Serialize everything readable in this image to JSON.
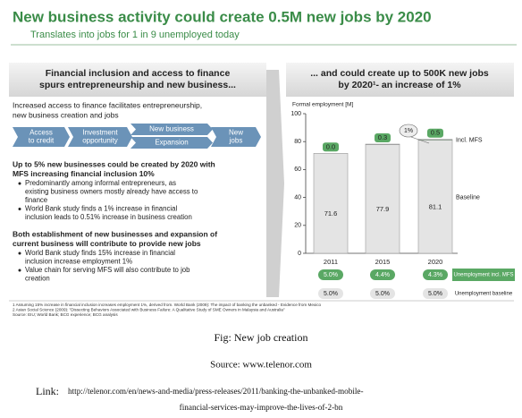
{
  "header": {
    "title": "New business activity could create 0.5M new jobs by 2020",
    "subtitle": "Translates into jobs for 1 in 9 unemployed today"
  },
  "left_panel": {
    "heading": [
      "Financial inclusion and access to finance",
      "spurs entrepreneurship and new business..."
    ],
    "intro": [
      "Increased access to finance facilitates entrepreneurship,",
      "new business creation and jobs"
    ],
    "flow": [
      [
        "Access",
        "to credit"
      ],
      [
        "Investment",
        "opportunity"
      ],
      [
        "New business"
      ],
      [
        "Expansion"
      ],
      [
        "New",
        "jobs"
      ]
    ],
    "block1": {
      "lead": [
        "Up to 5% new businesses could be created by 2020 with",
        "MFS increasing financial inclusion 10%"
      ],
      "bullets": [
        [
          "Predominantly among informal entrepreneurs, as",
          "existing business owners mostly already have access to",
          "finance"
        ],
        [
          "World Bank study finds a 1% increase in financial",
          "inclusion leads to 0.51% increase in business creation"
        ]
      ]
    },
    "block2": {
      "lead": [
        "Both establishment of new businesses and expansion of",
        "current business will contribute to provide new jobs"
      ],
      "bullets": [
        [
          "World Bank study finds 15% increase in financial",
          "inclusion increase employment 1%"
        ],
        [
          "Value chain for serving MFS will also contribute to job",
          "creation"
        ]
      ]
    }
  },
  "right_heading": [
    "... and could create up to 500K new jobs",
    "by 2020¹- an increase of 1%"
  ],
  "chart_data": {
    "type": "stacked_bar",
    "y_axis_label": "Formal employment [M]",
    "categories": [
      "2011",
      "2015",
      "2020"
    ],
    "series": [
      {
        "name": "Baseline",
        "color": "#e4e4e4",
        "values": [
          71.6,
          77.9,
          81.1
        ],
        "value_labels": [
          "71.6",
          "77.9",
          "81.1"
        ]
      },
      {
        "name": "Incl. MFS",
        "color": "#5aa864",
        "values": [
          0,
          0.3,
          0.5
        ],
        "value_labels": [
          "0.0",
          "0.3",
          "0.5"
        ]
      }
    ],
    "ylim": [
      0,
      100
    ],
    "yticks": [
      0,
      20,
      40,
      60,
      80,
      100
    ],
    "annotation": "1%",
    "rows": [
      {
        "name": "Unemployment incl. MFS",
        "color": "#5aa864",
        "values": [
          5,
          4.4,
          4.3
        ],
        "value_labels": [
          "5.0%",
          "4.4%",
          "4.3%"
        ]
      },
      {
        "name": "Unemployment baseline",
        "color": "#e4e4e4",
        "values": [
          5,
          5,
          5
        ],
        "value_labels": [
          "5.0%",
          "5.0%",
          "5.0%"
        ]
      }
    ]
  },
  "footnotes": [
    "1 Assuming 15% increase in financial inclusion increases employment 1%, derived from. World Bank (2009): The impact of banking the unbanked - Evidence from Mexico",
    "2 Asian Social Science (2009): \"Dissecting Behaviors Associated with Business Failure: A Qualitative Study of SME Owners in Malaysia and Australia\"",
    "Source: EIU; World Bank; BCG experience; BCG analysis"
  ],
  "caption": {
    "figure": "Fig:  New job creation",
    "source": "Source: www.telenor.com",
    "link_label": "Link:",
    "link": [
      "http://telenor.com/en/news-and-media/press-releases/2011/banking-the-unbanked-mobile-",
      "financial-services-may-improve-the-lives-of-2-bn"
    ]
  }
}
